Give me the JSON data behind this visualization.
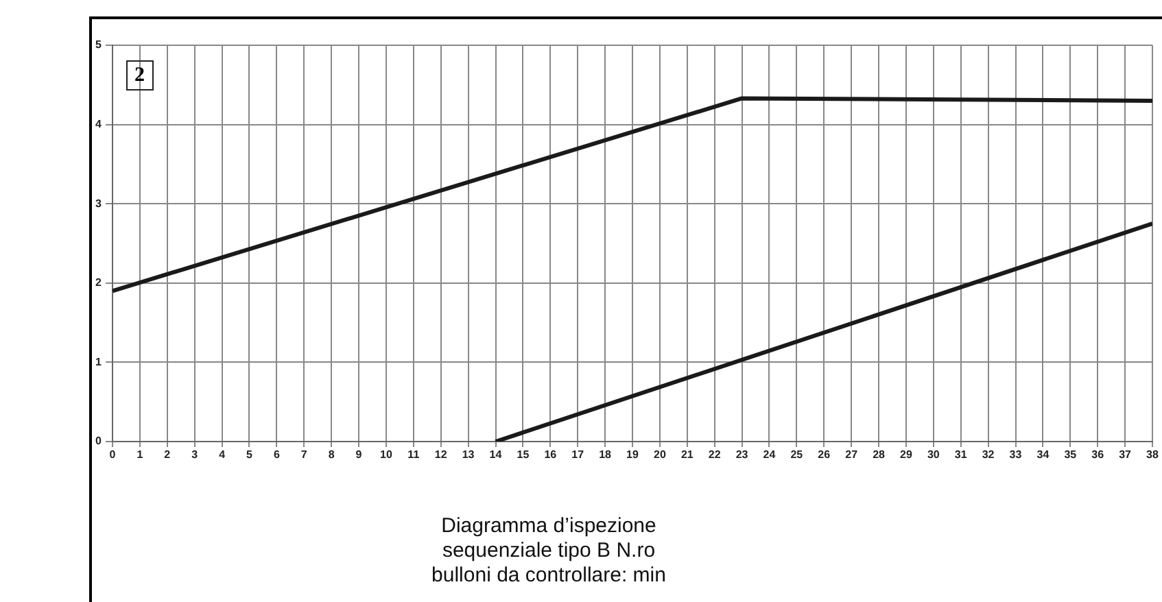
{
  "chart_data": {
    "type": "line",
    "annotations": [
      "2",
      "Diagramma d’ispezione sequenziale tipo B N.ro bulloni da controllare: min"
    ],
    "xlim": [
      0,
      38
    ],
    "xticks": [
      0,
      1,
      2,
      3,
      4,
      5,
      6,
      7,
      8,
      9,
      10,
      11,
      12,
      13,
      14,
      15,
      16,
      17,
      18,
      19,
      20,
      21,
      22,
      23,
      24,
      25,
      26,
      27,
      28,
      29,
      30,
      31,
      32,
      33,
      34,
      35,
      36,
      37,
      38
    ],
    "ylim": [
      0,
      5
    ],
    "yticks": [
      0,
      1,
      2,
      3,
      4,
      5
    ],
    "grid": true,
    "legend": false,
    "marker": "none",
    "line_style": "solid",
    "series": [
      {
        "color": "#1a1a1a",
        "x": [
          0,
          23,
          38
        ],
        "values": [
          1.9,
          4.33,
          4.3
        ]
      },
      {
        "color": "#1a1a1a",
        "x": [
          14,
          38
        ],
        "values": [
          0,
          2.75
        ]
      }
    ]
  }
}
